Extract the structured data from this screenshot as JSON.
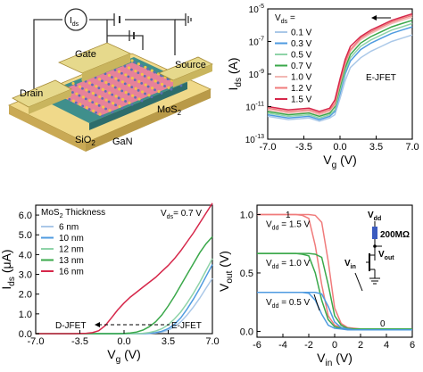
{
  "panel_a": {
    "labels": {
      "ids": "I",
      "ids_sub": "ds",
      "gate": "Gate",
      "source": "Source",
      "drain": "Drain",
      "mos2": "MoS",
      "mos2_sub": "2",
      "gan": "GaN",
      "sio2": "SiO",
      "sio2_sub": "2"
    },
    "colors": {
      "gold": "#d9c56a",
      "pad_top": "#e6d98c",
      "pink": "#e6829a",
      "teal": "#3f8f8c",
      "teal_dark": "#2e6d6b"
    }
  },
  "chart_data": [
    {
      "id": "transfer-log",
      "type": "line",
      "xlabel": "V",
      "xlabel_sub": "g",
      "xlabel_unit": " (V)",
      "ylabel": "I",
      "ylabel_sub": "ds",
      "ylabel_unit": " (A)",
      "xlim": [
        -7.0,
        7.0
      ],
      "ylim_exp": [
        -13,
        -5
      ],
      "yscale": "log",
      "xticks": [
        "-7.0",
        "-3.5",
        "0.0",
        "3.5",
        "7.0"
      ],
      "yticks_exp": [
        "-13",
        "-11",
        "-9",
        "-7",
        "-5"
      ],
      "legend_title": "V",
      "legend_title_sub": "ds",
      "legend_title_suffix": " =",
      "annotation": "E-JFET",
      "x": [
        -7,
        -5,
        -3,
        -2,
        -1,
        -0.5,
        0,
        0.5,
        1,
        2,
        3,
        4,
        5,
        6,
        7
      ],
      "series": [
        {
          "name": "0.1 V",
          "color": "#aac8e8",
          "log10_values": [
            -11.6,
            -11.8,
            -11.7,
            -11.9,
            -11.7,
            -11.5,
            -10.5,
            -9.4,
            -8.6,
            -8.0,
            -7.6,
            -7.3,
            -7.0,
            -6.8,
            -6.6
          ]
        },
        {
          "name": "0.3 V",
          "color": "#4f9be0",
          "log10_values": [
            -11.5,
            -11.7,
            -11.6,
            -11.8,
            -11.6,
            -11.3,
            -10.2,
            -9.0,
            -8.2,
            -7.5,
            -7.1,
            -6.8,
            -6.5,
            -6.3,
            -6.1
          ]
        },
        {
          "name": "0.5 V",
          "color": "#8fd3a8",
          "log10_values": [
            -11.4,
            -11.6,
            -11.5,
            -11.7,
            -11.5,
            -11.2,
            -10.0,
            -8.8,
            -8.0,
            -7.3,
            -6.9,
            -6.6,
            -6.3,
            -6.1,
            -5.9
          ]
        },
        {
          "name": "0.7 V",
          "color": "#3aa84a",
          "log10_values": [
            -11.3,
            -11.5,
            -11.4,
            -11.6,
            -11.4,
            -11.0,
            -9.8,
            -8.6,
            -7.8,
            -7.1,
            -6.7,
            -6.4,
            -6.1,
            -5.9,
            -5.7
          ]
        },
        {
          "name": "1.0 V",
          "color": "#f2b8b4",
          "log10_values": [
            -11.2,
            -11.4,
            -11.3,
            -11.5,
            -11.3,
            -10.9,
            -9.6,
            -8.4,
            -7.6,
            -6.9,
            -6.5,
            -6.2,
            -5.9,
            -5.7,
            -5.5
          ]
        },
        {
          "name": "1.2 V",
          "color": "#f07b7b",
          "log10_values": [
            -11.1,
            -11.3,
            -11.2,
            -11.4,
            -11.2,
            -10.8,
            -9.5,
            -8.3,
            -7.5,
            -6.8,
            -6.4,
            -6.1,
            -5.8,
            -5.6,
            -5.4
          ]
        },
        {
          "name": "1.5 V",
          "color": "#d6274a",
          "log10_values": [
            -11.0,
            -11.2,
            -11.1,
            -11.3,
            -11.1,
            -10.6,
            -9.3,
            -8.1,
            -7.3,
            -6.7,
            -6.3,
            -6.0,
            -5.7,
            -5.5,
            -5.3
          ]
        }
      ]
    },
    {
      "id": "transfer-linear",
      "type": "line",
      "xlabel": "V",
      "xlabel_sub": "g",
      "xlabel_unit": " (V)",
      "ylabel": "I",
      "ylabel_sub": "ds",
      "ylabel_unit": " (μA)",
      "xlim": [
        -7.0,
        7.0
      ],
      "ylim": [
        0.0,
        6.5
      ],
      "xticks": [
        "-7.0",
        "-3.5",
        "0.0",
        "3.5",
        "7.0"
      ],
      "yticks": [
        "0.0",
        "1.0",
        "2.0",
        "3.0",
        "4.0",
        "5.0",
        "6.0"
      ],
      "legend_title": "MoS",
      "legend_title_sub": "2",
      "legend_title_suffix": " Thickness",
      "corner_label": "V",
      "corner_label_sub": "ds",
      "corner_label_value": "= 0.7  V",
      "annotation_left": "D-JFET",
      "annotation_right": "E-JFET",
      "x": [
        -7,
        -6,
        -5,
        -4,
        -3,
        -2.5,
        -2,
        -1.5,
        -1,
        -0.5,
        0,
        0.5,
        1,
        1.5,
        2,
        2.5,
        3,
        3.5,
        4,
        4.5,
        5,
        5.5,
        6,
        6.5,
        7
      ],
      "series": [
        {
          "name": "6 nm",
          "color": "#aac8e8",
          "values": [
            0,
            0,
            0,
            0,
            0,
            0,
            0,
            0,
            0,
            0,
            0,
            0,
            0,
            0,
            0.01,
            0.03,
            0.08,
            0.17,
            0.35,
            0.6,
            0.95,
            1.35,
            1.8,
            2.3,
            2.8
          ]
        },
        {
          "name": "10 nm",
          "color": "#4f9be0",
          "values": [
            0,
            0,
            0,
            0,
            0,
            0,
            0,
            0,
            0,
            0,
            0,
            0,
            0,
            0,
            0.02,
            0.05,
            0.12,
            0.25,
            0.48,
            0.8,
            1.25,
            1.75,
            2.3,
            2.9,
            3.5
          ]
        },
        {
          "name": "12 nm",
          "color": "#8fd3a8",
          "values": [
            0,
            0,
            0,
            0,
            0,
            0,
            0,
            0,
            0,
            0,
            0,
            0,
            0,
            0.02,
            0.06,
            0.13,
            0.25,
            0.45,
            0.75,
            1.1,
            1.55,
            2.05,
            2.6,
            3.2,
            3.8
          ]
        },
        {
          "name": "13 nm",
          "color": "#3aa84a",
          "values": [
            0,
            0,
            0,
            0,
            0,
            0,
            0,
            0,
            0,
            0,
            0.01,
            0.03,
            0.08,
            0.18,
            0.35,
            0.6,
            0.95,
            1.4,
            1.9,
            2.45,
            3.0,
            3.55,
            4.1,
            4.55,
            4.9
          ]
        },
        {
          "name": "16 nm",
          "color": "#d6274a",
          "values": [
            0,
            0,
            0,
            0,
            0.02,
            0.05,
            0.15,
            0.4,
            0.8,
            1.2,
            1.55,
            1.85,
            2.1,
            2.35,
            2.6,
            2.85,
            3.15,
            3.45,
            3.8,
            4.2,
            4.65,
            5.1,
            5.6,
            6.1,
            6.6
          ]
        }
      ]
    },
    {
      "id": "inverter",
      "type": "line",
      "xlabel": "V",
      "xlabel_sub": "in",
      "xlabel_unit": " (V)",
      "ylabel": "V",
      "ylabel_sub": "out",
      "ylabel_unit": " (V)",
      "xlim": [
        -6,
        6
      ],
      "ylim": [
        -0.05,
        1.08
      ],
      "xticks": [
        "-6",
        "-4",
        "-2",
        "0",
        "2",
        "4",
        "6"
      ],
      "ytick_values": [
        0.0,
        0.5,
        1.0
      ],
      "label_one": "1",
      "label_zero": "0",
      "annotations": [
        {
          "text": "V",
          "sub": "dd",
          "value": " = 1.5 V"
        },
        {
          "text": "V",
          "sub": "dd",
          "value": " = 1.0 V"
        },
        {
          "text": "V",
          "sub": "dd",
          "value": " = 0.5 V"
        }
      ],
      "circuit": {
        "vdd": "V",
        "vdd_sub": "dd",
        "resistor": "200MΩ",
        "vin": "V",
        "vin_sub": "in",
        "vout": "V",
        "vout_sub": "out",
        "resistor_color": "#3b5bbf"
      },
      "x": [
        -6,
        -4,
        -3,
        -2.5,
        -2,
        -1.5,
        -1,
        -0.5,
        0,
        0.5,
        1,
        1.5,
        2,
        3,
        4,
        6
      ],
      "series": [
        {
          "name": "V_dd = 1.5 V",
          "color": "#f07b7b",
          "fwd": [
            1.5,
            1.5,
            1.5,
            1.5,
            1.5,
            1.49,
            1.4,
            0.9,
            0.3,
            0.1,
            0.05,
            0.04,
            0.03,
            0.03,
            0.03,
            0.03
          ],
          "rev": [
            1.5,
            1.5,
            1.5,
            1.49,
            1.45,
            1.1,
            0.6,
            0.2,
            0.08,
            0.05,
            0.04,
            0.03,
            0.03,
            0.03,
            0.03,
            0.03
          ]
        },
        {
          "name": "V_dd = 1.0 V",
          "color": "#3aa84a",
          "fwd": [
            1.0,
            1.0,
            1.0,
            1.0,
            1.0,
            0.99,
            0.95,
            0.6,
            0.2,
            0.08,
            0.04,
            0.03,
            0.03,
            0.03,
            0.03,
            0.03
          ],
          "rev": [
            1.0,
            1.0,
            1.0,
            0.99,
            0.97,
            0.75,
            0.4,
            0.15,
            0.06,
            0.04,
            0.03,
            0.03,
            0.03,
            0.03,
            0.03,
            0.03
          ]
        },
        {
          "name": "V_dd = 0.5 V",
          "color": "#4f9be0",
          "fwd": [
            0.5,
            0.5,
            0.5,
            0.5,
            0.5,
            0.5,
            0.48,
            0.32,
            0.12,
            0.05,
            0.03,
            0.02,
            0.02,
            0.02,
            0.02,
            0.02
          ],
          "rev": [
            0.5,
            0.5,
            0.5,
            0.5,
            0.49,
            0.4,
            0.22,
            0.08,
            0.04,
            0.03,
            0.02,
            0.02,
            0.02,
            0.02,
            0.02,
            0.02
          ]
        }
      ]
    }
  ]
}
